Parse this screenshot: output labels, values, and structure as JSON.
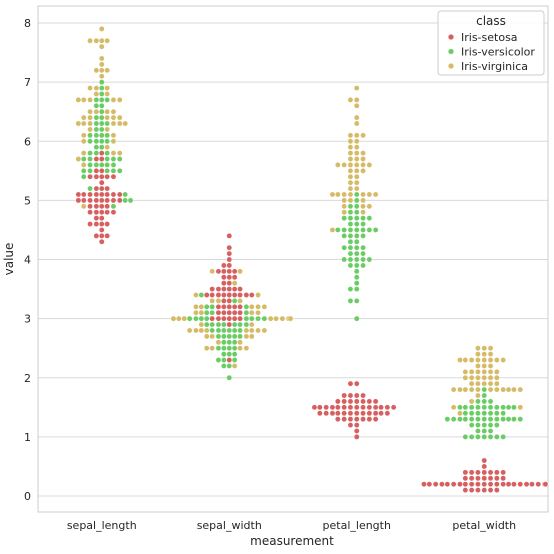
{
  "chart_data": {
    "type": "scatter",
    "subtype": "swarm",
    "xlabel": "measurement",
    "ylabel": "value",
    "categories": [
      "sepal_length",
      "sepal_width",
      "petal_length",
      "petal_width"
    ],
    "ylim": [
      -0.3,
      8.3
    ],
    "yticks": [
      0,
      1,
      2,
      3,
      4,
      5,
      6,
      7,
      8
    ],
    "grid": true,
    "legend": {
      "title": "class",
      "placement": "top-right"
    },
    "series": [
      {
        "name": "Iris-setosa",
        "color": "#d65f5f",
        "values": {
          "sepal_length": [
            5.1,
            4.9,
            4.7,
            4.6,
            5.0,
            5.4,
            4.6,
            5.0,
            4.4,
            4.9,
            5.4,
            4.8,
            4.8,
            4.3,
            5.8,
            5.7,
            5.4,
            5.1,
            5.7,
            5.1,
            5.4,
            5.1,
            4.6,
            5.1,
            4.8,
            5.0,
            5.0,
            5.2,
            5.2,
            4.7,
            4.8,
            5.4,
            5.2,
            5.5,
            4.9,
            5.0,
            5.5,
            4.9,
            4.4,
            5.1,
            5.0,
            4.5,
            4.4,
            5.0,
            5.1,
            4.8,
            5.1,
            4.6,
            5.3,
            5.0
          ],
          "sepal_width": [
            3.5,
            3.0,
            3.2,
            3.1,
            3.6,
            3.9,
            3.4,
            3.4,
            2.9,
            3.1,
            3.7,
            3.4,
            3.0,
            3.0,
            4.0,
            4.4,
            3.9,
            3.5,
            3.8,
            3.8,
            3.4,
            3.7,
            3.6,
            3.3,
            3.4,
            3.0,
            3.4,
            3.5,
            3.4,
            3.2,
            3.1,
            3.4,
            4.1,
            4.2,
            3.1,
            3.2,
            3.5,
            3.1,
            3.0,
            3.4,
            3.5,
            2.3,
            3.2,
            3.5,
            3.8,
            3.0,
            3.8,
            3.2,
            3.7,
            3.3
          ],
          "petal_length": [
            1.4,
            1.4,
            1.3,
            1.5,
            1.4,
            1.7,
            1.4,
            1.5,
            1.4,
            1.5,
            1.5,
            1.6,
            1.4,
            1.1,
            1.2,
            1.5,
            1.3,
            1.4,
            1.7,
            1.5,
            1.7,
            1.5,
            1.0,
            1.7,
            1.9,
            1.6,
            1.6,
            1.5,
            1.4,
            1.6,
            1.6,
            1.5,
            1.5,
            1.4,
            1.5,
            1.2,
            1.3,
            1.5,
            1.3,
            1.5,
            1.3,
            1.3,
            1.3,
            1.6,
            1.9,
            1.4,
            1.6,
            1.4,
            1.5,
            1.4
          ],
          "petal_width": [
            0.2,
            0.2,
            0.2,
            0.2,
            0.2,
            0.4,
            0.3,
            0.2,
            0.2,
            0.1,
            0.2,
            0.2,
            0.1,
            0.1,
            0.2,
            0.4,
            0.4,
            0.3,
            0.3,
            0.3,
            0.2,
            0.4,
            0.2,
            0.5,
            0.2,
            0.2,
            0.4,
            0.2,
            0.2,
            0.2,
            0.2,
            0.4,
            0.1,
            0.2,
            0.1,
            0.2,
            0.2,
            0.1,
            0.2,
            0.2,
            0.3,
            0.3,
            0.2,
            0.6,
            0.4,
            0.3,
            0.2,
            0.2,
            0.2,
            0.2
          ]
        }
      },
      {
        "name": "Iris-versicolor",
        "color": "#6acc65",
        "values": {
          "sepal_length": [
            7.0,
            6.4,
            6.9,
            5.5,
            6.5,
            5.7,
            6.3,
            4.9,
            6.6,
            5.2,
            5.0,
            5.9,
            6.0,
            6.1,
            5.6,
            6.7,
            5.6,
            5.8,
            6.2,
            5.6,
            5.9,
            6.1,
            6.3,
            6.1,
            6.4,
            6.6,
            6.8,
            6.7,
            6.0,
            5.7,
            5.5,
            5.5,
            5.8,
            6.0,
            5.4,
            6.0,
            6.7,
            6.3,
            5.6,
            5.5,
            5.5,
            6.1,
            5.8,
            5.0,
            5.6,
            5.7,
            5.7,
            6.2,
            5.1,
            5.7
          ],
          "sepal_width": [
            3.2,
            3.2,
            3.1,
            2.3,
            2.8,
            2.8,
            3.3,
            2.4,
            2.9,
            2.7,
            2.0,
            3.0,
            2.2,
            2.9,
            2.9,
            3.1,
            3.0,
            2.7,
            2.2,
            2.5,
            3.2,
            2.8,
            2.5,
            2.8,
            2.9,
            3.0,
            2.8,
            3.0,
            2.9,
            2.6,
            2.4,
            2.4,
            2.7,
            2.7,
            3.0,
            3.4,
            3.1,
            2.3,
            3.0,
            2.5,
            2.6,
            3.0,
            2.6,
            2.3,
            2.7,
            3.0,
            2.9,
            2.9,
            2.5,
            2.8
          ],
          "petal_length": [
            4.7,
            4.5,
            4.9,
            4.0,
            4.6,
            4.5,
            4.7,
            3.3,
            4.6,
            3.9,
            3.5,
            4.2,
            4.0,
            4.7,
            3.6,
            4.4,
            4.5,
            4.1,
            4.5,
            3.9,
            4.8,
            4.0,
            4.9,
            4.7,
            4.3,
            4.4,
            4.8,
            5.0,
            4.5,
            3.5,
            3.8,
            3.7,
            3.9,
            5.1,
            4.5,
            4.5,
            4.7,
            4.4,
            4.1,
            4.0,
            4.4,
            4.6,
            4.0,
            3.3,
            4.2,
            4.2,
            4.2,
            4.3,
            3.0,
            4.1
          ],
          "petal_width": [
            1.4,
            1.5,
            1.5,
            1.3,
            1.5,
            1.3,
            1.6,
            1.0,
            1.3,
            1.4,
            1.0,
            1.5,
            1.0,
            1.4,
            1.3,
            1.4,
            1.5,
            1.0,
            1.5,
            1.1,
            1.8,
            1.3,
            1.5,
            1.2,
            1.3,
            1.4,
            1.4,
            1.7,
            1.5,
            1.0,
            1.1,
            1.0,
            1.2,
            1.6,
            1.5,
            1.6,
            1.5,
            1.3,
            1.3,
            1.3,
            1.2,
            1.4,
            1.2,
            1.0,
            1.3,
            1.2,
            1.3,
            1.3,
            1.1,
            1.3
          ]
        }
      },
      {
        "name": "Iris-virginica",
        "color": "#d5bb67",
        "values": {
          "sepal_length": [
            6.3,
            5.8,
            7.1,
            6.3,
            6.5,
            7.6,
            4.9,
            7.3,
            6.7,
            7.2,
            6.5,
            6.4,
            6.8,
            5.7,
            5.8,
            6.4,
            6.5,
            7.7,
            7.7,
            6.0,
            6.9,
            5.6,
            7.7,
            6.3,
            6.7,
            7.2,
            6.2,
            6.1,
            6.4,
            7.2,
            7.4,
            7.9,
            6.4,
            6.3,
            6.1,
            7.7,
            6.3,
            6.4,
            6.0,
            6.9,
            6.7,
            6.9,
            5.8,
            6.8,
            6.7,
            6.7,
            6.3,
            6.5,
            6.2,
            5.9
          ],
          "sepal_width": [
            3.3,
            2.7,
            3.0,
            2.9,
            3.0,
            3.0,
            2.5,
            2.9,
            2.5,
            3.6,
            3.2,
            2.7,
            3.0,
            2.5,
            2.8,
            3.2,
            3.0,
            3.8,
            2.6,
            2.2,
            3.2,
            2.8,
            2.8,
            2.7,
            3.3,
            3.2,
            2.8,
            3.0,
            2.8,
            3.0,
            2.8,
            3.8,
            2.8,
            2.8,
            2.6,
            3.0,
            3.4,
            3.1,
            3.0,
            3.1,
            3.1,
            3.1,
            2.7,
            3.2,
            3.3,
            3.0,
            2.5,
            3.0,
            3.4,
            3.0
          ],
          "petal_length": [
            6.0,
            5.1,
            5.9,
            5.6,
            5.8,
            6.6,
            4.5,
            6.3,
            5.8,
            6.1,
            5.1,
            5.3,
            5.5,
            5.0,
            5.1,
            5.3,
            5.5,
            6.7,
            6.9,
            5.0,
            5.7,
            4.9,
            6.7,
            4.9,
            5.7,
            6.0,
            4.8,
            4.9,
            5.6,
            5.8,
            6.1,
            6.4,
            5.6,
            5.1,
            5.6,
            6.1,
            5.6,
            5.5,
            4.8,
            5.4,
            5.6,
            5.1,
            5.1,
            5.9,
            5.7,
            5.2,
            5.0,
            5.2,
            5.4,
            5.1
          ],
          "petal_width": [
            2.5,
            1.9,
            2.1,
            1.8,
            2.2,
            2.1,
            1.7,
            1.8,
            1.8,
            2.5,
            2.0,
            1.9,
            2.1,
            2.0,
            2.4,
            2.3,
            1.8,
            2.2,
            2.3,
            1.5,
            2.3,
            2.0,
            2.0,
            1.8,
            2.1,
            1.8,
            1.8,
            1.8,
            2.1,
            1.6,
            1.9,
            2.0,
            2.2,
            1.5,
            1.4,
            2.3,
            2.4,
            1.8,
            1.8,
            2.1,
            2.4,
            2.3,
            1.9,
            2.3,
            2.5,
            2.3,
            1.9,
            2.0,
            2.3,
            1.8
          ]
        }
      }
    ]
  }
}
